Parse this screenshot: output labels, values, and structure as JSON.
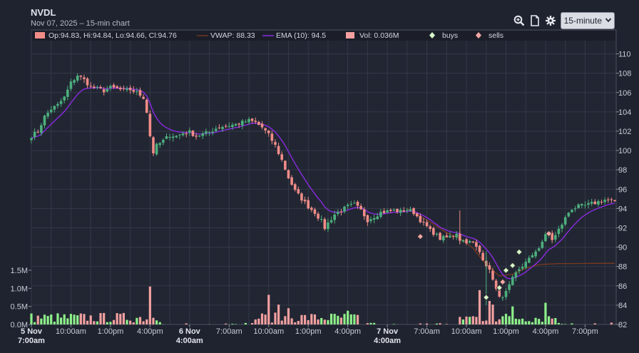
{
  "header": {
    "title": "NVDL",
    "subtitle": "Nov 07, 2025 – 15-min chart",
    "interval": "15-minute"
  },
  "icons": [
    "zoom-icon",
    "document-icon",
    "gear-icon",
    "chevron-down-icon"
  ],
  "colors": {
    "up": "#4caf7d",
    "down": "#f08c88",
    "vwap": "#7a3a1e",
    "ema": "#8a2be2",
    "buy_marker": "#d7f5c8",
    "sell_marker": "#f4a7a4",
    "vol_up": "#8ef08a",
    "vol_down": "#f3a0a0"
  },
  "chart_data": {
    "type": "candlestick",
    "legend": {
      "ohlc": "Op:94.83, Hi:94.84, Lo:94.66, Cl:94.76",
      "vwap": "VWAP: 88.33",
      "ema": "EMA (10): 94.5",
      "volume": "Vol: 0.036M",
      "buys": "buys",
      "sells": "sells"
    },
    "price_axis": {
      "min": 82,
      "max": 111,
      "ticks": [
        82,
        84,
        86,
        88,
        90,
        92,
        94,
        96,
        98,
        100,
        102,
        104,
        106,
        108,
        110
      ]
    },
    "volume_axis": {
      "ticks": [
        0,
        0.5,
        1.0,
        1.5
      ],
      "tick_labels": [
        "0.0M",
        "0.5M",
        "1.0M",
        "1.5M"
      ]
    },
    "x_axis": {
      "ticks": [
        {
          "pos": 0,
          "label": "5 Nov",
          "sublabel": "7:00am",
          "bold": true
        },
        {
          "pos": 12,
          "label": "10:00am"
        },
        {
          "pos": 24,
          "label": "1:00pm"
        },
        {
          "pos": 36,
          "label": "4:00pm"
        },
        {
          "pos": 48,
          "label": "6 Nov",
          "sublabel": "4:00am",
          "bold": true
        },
        {
          "pos": 60,
          "label": "7:00am"
        },
        {
          "pos": 72,
          "label": "10:00am"
        },
        {
          "pos": 84,
          "label": "1:00pm"
        },
        {
          "pos": 96,
          "label": "4:00pm"
        },
        {
          "pos": 108,
          "label": "7 Nov",
          "sublabel": "4:00am",
          "bold": true
        },
        {
          "pos": 120,
          "label": "7:00am"
        },
        {
          "pos": 132,
          "label": "10:00am"
        },
        {
          "pos": 144,
          "label": "1:00pm"
        },
        {
          "pos": 156,
          "label": "4:00pm"
        },
        {
          "pos": 168,
          "label": "7:00pm"
        }
      ]
    },
    "close_anchors": [
      [
        0,
        101.5
      ],
      [
        2,
        102.0
      ],
      [
        4,
        103.5
      ],
      [
        6,
        104.3
      ],
      [
        8,
        104.7
      ],
      [
        10,
        105.5
      ],
      [
        12,
        107.0
      ],
      [
        14,
        107.8
      ],
      [
        16,
        107.3
      ],
      [
        18,
        106.6
      ],
      [
        20,
        106.4
      ],
      [
        22,
        106.2
      ],
      [
        24,
        106.5
      ],
      [
        26,
        106.4
      ],
      [
        28,
        106.2
      ],
      [
        30,
        106.3
      ],
      [
        32,
        106.0
      ],
      [
        34,
        105.5
      ],
      [
        35,
        104.0
      ],
      [
        36,
        101.5
      ],
      [
        37,
        99.8
      ],
      [
        38,
        100.5
      ],
      [
        40,
        101.0
      ],
      [
        42,
        101.6
      ],
      [
        44,
        101.5
      ],
      [
        46,
        101.8
      ],
      [
        48,
        101.9
      ],
      [
        50,
        101.5
      ],
      [
        52,
        101.7
      ],
      [
        54,
        101.9
      ],
      [
        56,
        102.3
      ],
      [
        58,
        102.5
      ],
      [
        60,
        102.6
      ],
      [
        62,
        102.7
      ],
      [
        64,
        102.9
      ],
      [
        66,
        103.1
      ],
      [
        68,
        102.9
      ],
      [
        70,
        102.4
      ],
      [
        72,
        101.6
      ],
      [
        74,
        100.5
      ],
      [
        76,
        99.0
      ],
      [
        78,
        97.2
      ],
      [
        80,
        95.8
      ],
      [
        82,
        95.0
      ],
      [
        84,
        94.2
      ],
      [
        86,
        93.6
      ],
      [
        88,
        92.7
      ],
      [
        89,
        92.0
      ],
      [
        90,
        92.5
      ],
      [
        92,
        93.4
      ],
      [
        94,
        93.8
      ],
      [
        96,
        94.2
      ],
      [
        98,
        94.4
      ],
      [
        100,
        93.8
      ],
      [
        101,
        93.3
      ],
      [
        102,
        92.8
      ],
      [
        104,
        93.2
      ],
      [
        106,
        93.6
      ],
      [
        108,
        93.7
      ],
      [
        110,
        93.8
      ],
      [
        112,
        93.7
      ],
      [
        114,
        93.9
      ],
      [
        116,
        93.6
      ],
      [
        117,
        93.2
      ],
      [
        118,
        92.8
      ],
      [
        119,
        92.4
      ],
      [
        120,
        92.1
      ],
      [
        121,
        91.7
      ],
      [
        122,
        91.5
      ],
      [
        123,
        91.2
      ],
      [
        124,
        90.9
      ],
      [
        126,
        91.0
      ],
      [
        128,
        91.2
      ],
      [
        129,
        91.5
      ],
      [
        130,
        90.8
      ],
      [
        132,
        90.6
      ],
      [
        134,
        90.4
      ],
      [
        136,
        89.5
      ],
      [
        138,
        88.2
      ],
      [
        140,
        86.8
      ],
      [
        141,
        85.6
      ],
      [
        142,
        84.7
      ],
      [
        143,
        85.0
      ],
      [
        144,
        85.3
      ],
      [
        145,
        86.0
      ],
      [
        146,
        86.7
      ],
      [
        147,
        87.2
      ],
      [
        148,
        87.6
      ],
      [
        149,
        88.0
      ],
      [
        150,
        88.6
      ],
      [
        152,
        89.0
      ],
      [
        153,
        89.6
      ],
      [
        154,
        90.0
      ],
      [
        155,
        90.6
      ],
      [
        156,
        91.2
      ],
      [
        157,
        91.5
      ],
      [
        158,
        90.8
      ],
      [
        159,
        91.2
      ],
      [
        160,
        91.8
      ],
      [
        161,
        92.4
      ],
      [
        162,
        93.0
      ],
      [
        163,
        93.6
      ],
      [
        164,
        94.0
      ],
      [
        166,
        94.2
      ],
      [
        168,
        94.3
      ],
      [
        170,
        94.5
      ],
      [
        172,
        94.7
      ],
      [
        174,
        94.9
      ],
      [
        176,
        94.8
      ],
      [
        177,
        94.76
      ]
    ],
    "volume_spikes": [
      [
        36,
        1.05
      ],
      [
        72,
        0.82
      ],
      [
        75,
        0.55
      ],
      [
        78,
        0.45
      ],
      [
        96,
        0.38
      ],
      [
        136,
        0.95
      ],
      [
        139,
        0.65
      ],
      [
        140,
        0.55
      ],
      [
        146,
        0.5
      ],
      [
        156,
        0.6
      ]
    ],
    "buys": [
      [
        138,
        84.8
      ],
      [
        142,
        85.8
      ],
      [
        144,
        87.6
      ],
      [
        146,
        88.1
      ],
      [
        148,
        89.5
      ]
    ],
    "sells": [
      [
        118,
        91.1
      ],
      [
        143,
        86.4
      ],
      [
        157,
        91.4
      ]
    ],
    "vwap_anchors": [
      [
        114,
        94.0
      ],
      [
        120,
        92.8
      ],
      [
        126,
        91.5
      ],
      [
        130,
        90.9
      ],
      [
        134,
        89.9
      ],
      [
        138,
        88.2
      ],
      [
        142,
        87.0
      ],
      [
        146,
        87.2
      ],
      [
        150,
        87.8
      ],
      [
        154,
        88.2
      ],
      [
        160,
        88.3
      ],
      [
        177,
        88.33
      ]
    ]
  }
}
